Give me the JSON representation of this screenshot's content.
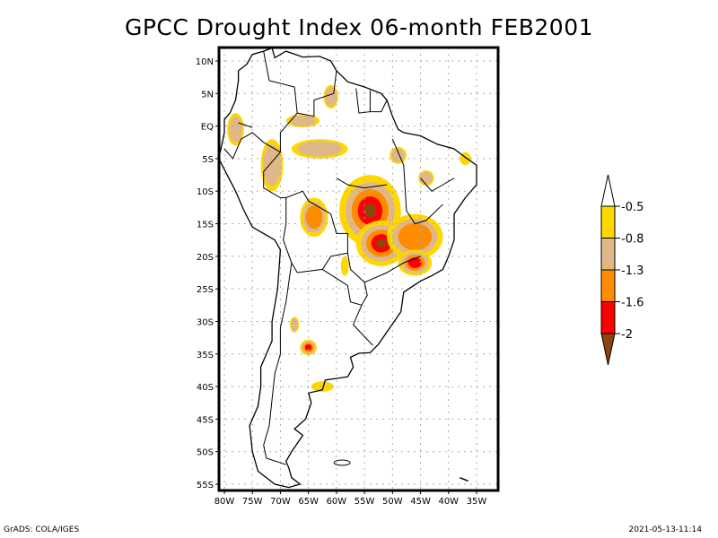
{
  "title": "GPCC Drought Index 06-month FEB2001",
  "footer": {
    "left": "GrADS: COLA/IGES",
    "right": "2021-05-13-11:14"
  },
  "map": {
    "region": "South America",
    "lon_range": [
      -81,
      -32
    ],
    "lat_range": [
      12,
      -56
    ],
    "lon_ticks": [
      "80W",
      "75W",
      "70W",
      "65W",
      "60W",
      "55W",
      "50W",
      "45W",
      "40W",
      "35W"
    ],
    "lon_tick_values": [
      -80,
      -75,
      -70,
      -65,
      -60,
      -55,
      -50,
      -45,
      -40,
      -35
    ],
    "lat_ticks": [
      "10N",
      "5N",
      "EQ",
      "5S",
      "10S",
      "15S",
      "20S",
      "25S",
      "30S",
      "35S",
      "40S",
      "45S",
      "50S",
      "55S"
    ],
    "lat_tick_values": [
      10,
      5,
      0,
      -5,
      -10,
      -15,
      -20,
      -25,
      -30,
      -35,
      -40,
      -45,
      -50,
      -55
    ]
  },
  "colorbar": {
    "levels": [
      "-0.5",
      "-0.8",
      "-1.3",
      "-1.6",
      "-2"
    ],
    "colors": {
      "above": "#ffffff",
      "b1": "#ffd700",
      "b2": "#e0b888",
      "b3": "#ff8c00",
      "b4": "#ff0000",
      "below": "#8b4513"
    }
  },
  "drought_areas": [
    {
      "name": "central-brazil-core",
      "lon": -54,
      "lat": -13,
      "rx": 5.5,
      "ry": 5.5,
      "level": 5
    },
    {
      "name": "mato-grosso-sul",
      "lon": -52,
      "lat": -18,
      "rx": 4.5,
      "ry": 3.5,
      "level": 5
    },
    {
      "name": "minas-gerais",
      "lon": -46,
      "lat": -17,
      "rx": 5,
      "ry": 3.5,
      "level": 3
    },
    {
      "name": "sao-paulo",
      "lon": -46,
      "lat": -21,
      "rx": 3,
      "ry": 2,
      "level": 4
    },
    {
      "name": "bolivia",
      "lon": -64,
      "lat": -14,
      "rx": 2.5,
      "ry": 3,
      "level": 3
    },
    {
      "name": "peru-ne",
      "lon": -71.5,
      "lat": -6,
      "rx": 2,
      "ry": 4,
      "level": 2
    },
    {
      "name": "amazon-north",
      "lon": -63,
      "lat": -3.5,
      "rx": 5,
      "ry": 1.5,
      "level": 2
    },
    {
      "name": "venezuela-east",
      "lon": -66,
      "lat": 0.8,
      "rx": 3,
      "ry": 1,
      "level": 2
    },
    {
      "name": "guyana",
      "lon": -61,
      "lat": 4.5,
      "rx": 1.3,
      "ry": 1.8,
      "level": 2
    },
    {
      "name": "ecuador-col",
      "lon": -78,
      "lat": -0.5,
      "rx": 1.5,
      "ry": 2.5,
      "level": 2
    },
    {
      "name": "northeast-brazil",
      "lon": -49,
      "lat": -4.5,
      "rx": 1.5,
      "ry": 1.3,
      "level": 2
    },
    {
      "name": "piaui",
      "lon": -44,
      "lat": -8,
      "rx": 1.4,
      "ry": 1.2,
      "level": 2
    },
    {
      "name": "rio-grande-norte",
      "lon": -37,
      "lat": -5,
      "rx": 1,
      "ry": 1,
      "level": 1
    },
    {
      "name": "argentina-central",
      "lon": -65,
      "lat": -34,
      "rx": 1.5,
      "ry": 1.2,
      "level": 4
    },
    {
      "name": "mendoza",
      "lon": -67.5,
      "lat": -30.5,
      "rx": 0.8,
      "ry": 1.2,
      "level": 2
    },
    {
      "name": "rio-negro",
      "lon": -62.5,
      "lat": -40,
      "rx": 2,
      "ry": 0.8,
      "level": 1
    },
    {
      "name": "paraguay-north",
      "lon": -58.5,
      "lat": -21.5,
      "rx": 0.7,
      "ry": 1.5,
      "level": 1
    }
  ]
}
